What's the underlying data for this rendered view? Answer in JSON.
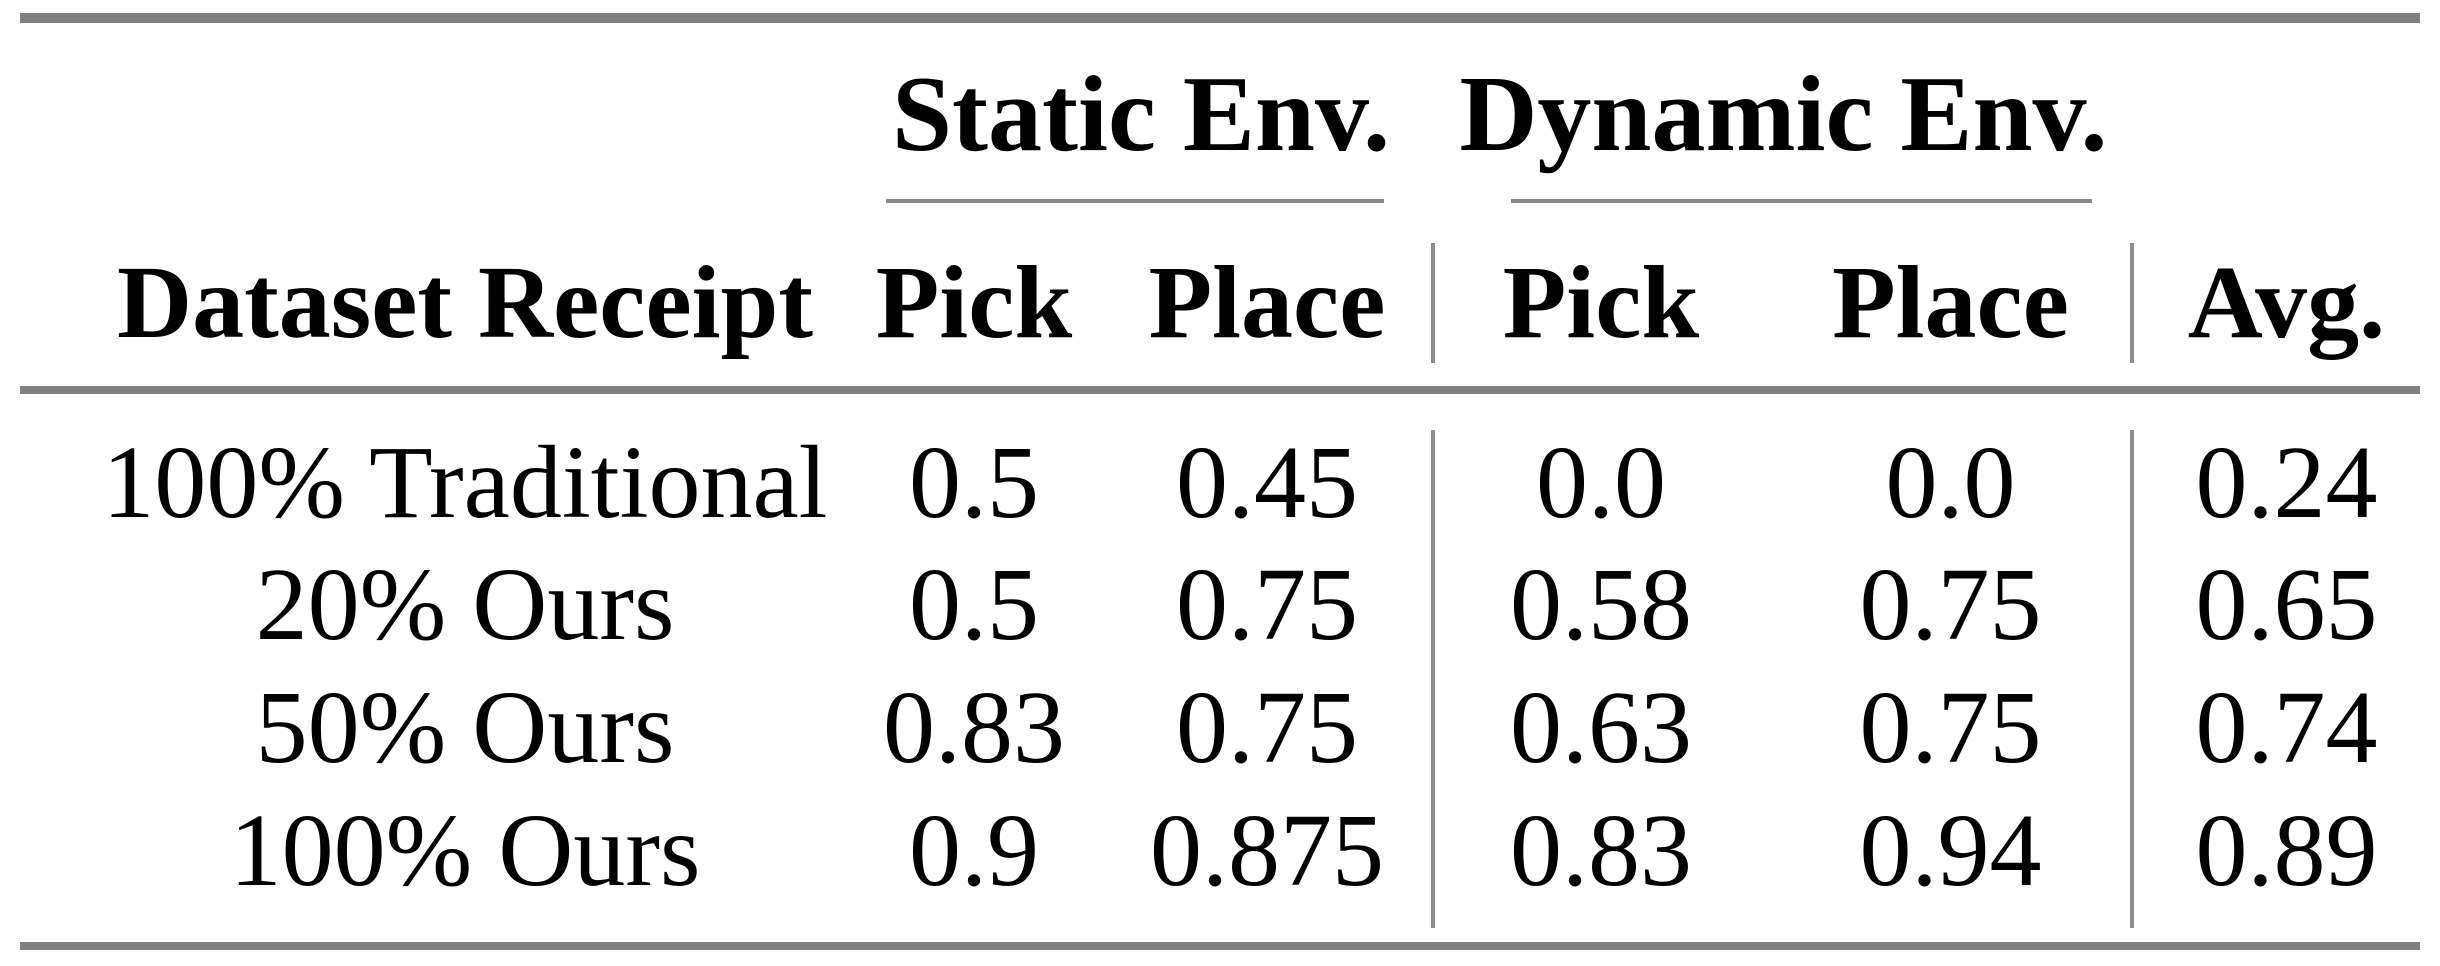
{
  "table": {
    "colors": {
      "rule": "#808080",
      "text": "#000000",
      "background": "#ffffff"
    },
    "col_groups": {
      "static": "Static Env.",
      "dynamic": "Dynamic Env."
    },
    "headers": {
      "dataset": "Dataset Receipt",
      "static_pick": "Pick",
      "static_place": "Place",
      "dynamic_pick": "Pick",
      "dynamic_place": "Place",
      "avg": "Avg."
    },
    "rows": [
      {
        "label": "100% Traditional",
        "static_pick": "0.5",
        "static_place": "0.45",
        "dynamic_pick": "0.0",
        "dynamic_place": "0.0",
        "avg": "0.24"
      },
      {
        "label": "20% Ours",
        "static_pick": "0.5",
        "static_place": "0.75",
        "dynamic_pick": "0.58",
        "dynamic_place": "0.75",
        "avg": "0.65"
      },
      {
        "label": "50% Ours",
        "static_pick": "0.83",
        "static_place": "0.75",
        "dynamic_pick": "0.63",
        "dynamic_place": "0.75",
        "avg": "0.74"
      },
      {
        "label": "100% Ours",
        "static_pick": "0.9",
        "static_place": "0.875",
        "dynamic_pick": "0.83",
        "dynamic_place": "0.94",
        "avg": "0.89"
      }
    ]
  }
}
